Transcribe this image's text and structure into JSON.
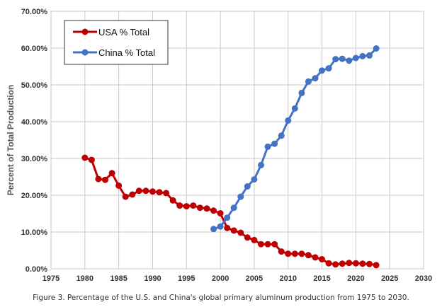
{
  "caption": "Figure 3. Percentage of the U.S. and China's global primary aluminum production from 1975 to 2030.",
  "chart_data": {
    "type": "line",
    "title": "",
    "xlabel": "",
    "ylabel": "Percent of Total Production",
    "xlim": [
      1975,
      2030
    ],
    "ylim": [
      0,
      70
    ],
    "x_ticks": [
      1975,
      1980,
      1985,
      1990,
      1995,
      2000,
      2005,
      2010,
      2015,
      2020,
      2025,
      2030
    ],
    "y_ticks": [
      0,
      10,
      20,
      30,
      40,
      50,
      60,
      70
    ],
    "y_tick_labels": [
      "0.00%",
      "10.00%",
      "20.00%",
      "30.00%",
      "40.00%",
      "50.00%",
      "60.00%",
      "70.00%"
    ],
    "grid": true,
    "legend_position": "top-left",
    "series": [
      {
        "name": "USA % Total",
        "color": "#c00000",
        "x": [
          1980,
          1981,
          1982,
          1983,
          1984,
          1985,
          1986,
          1987,
          1988,
          1989,
          1990,
          1991,
          1992,
          1993,
          1994,
          1995,
          1996,
          1997,
          1998,
          1999,
          2000,
          2001,
          2002,
          2003,
          2004,
          2005,
          2006,
          2007,
          2008,
          2009,
          2010,
          2011,
          2012,
          2013,
          2014,
          2015,
          2016,
          2017,
          2018,
          2019,
          2020,
          2021,
          2022,
          2023
        ],
        "values": [
          30.2,
          29.6,
          24.4,
          24.2,
          26.0,
          22.6,
          19.6,
          20.2,
          21.2,
          21.2,
          21.0,
          20.8,
          20.6,
          18.6,
          17.2,
          17.0,
          17.2,
          16.6,
          16.4,
          15.8,
          15.1,
          11.1,
          10.4,
          9.8,
          8.5,
          7.8,
          6.7,
          6.7,
          6.7,
          4.7,
          4.1,
          4.1,
          4.1,
          3.7,
          3.1,
          2.6,
          1.5,
          1.2,
          1.4,
          1.6,
          1.5,
          1.4,
          1.3,
          1.0
        ]
      },
      {
        "name": "China % Total",
        "color": "#4472c4",
        "x": [
          1999,
          2000,
          2001,
          2002,
          2003,
          2004,
          2005,
          2006,
          2007,
          2008,
          2009,
          2010,
          2011,
          2012,
          2013,
          2014,
          2015,
          2016,
          2017,
          2018,
          2019,
          2020,
          2021,
          2022,
          2023
        ],
        "values": [
          10.8,
          11.5,
          13.9,
          16.6,
          19.6,
          22.4,
          24.3,
          28.2,
          33.2,
          34.0,
          36.2,
          40.3,
          43.6,
          47.8,
          50.9,
          51.8,
          53.9,
          54.5,
          57.0,
          57.1,
          56.6,
          57.3,
          57.8,
          58.0,
          59.9
        ]
      }
    ]
  }
}
